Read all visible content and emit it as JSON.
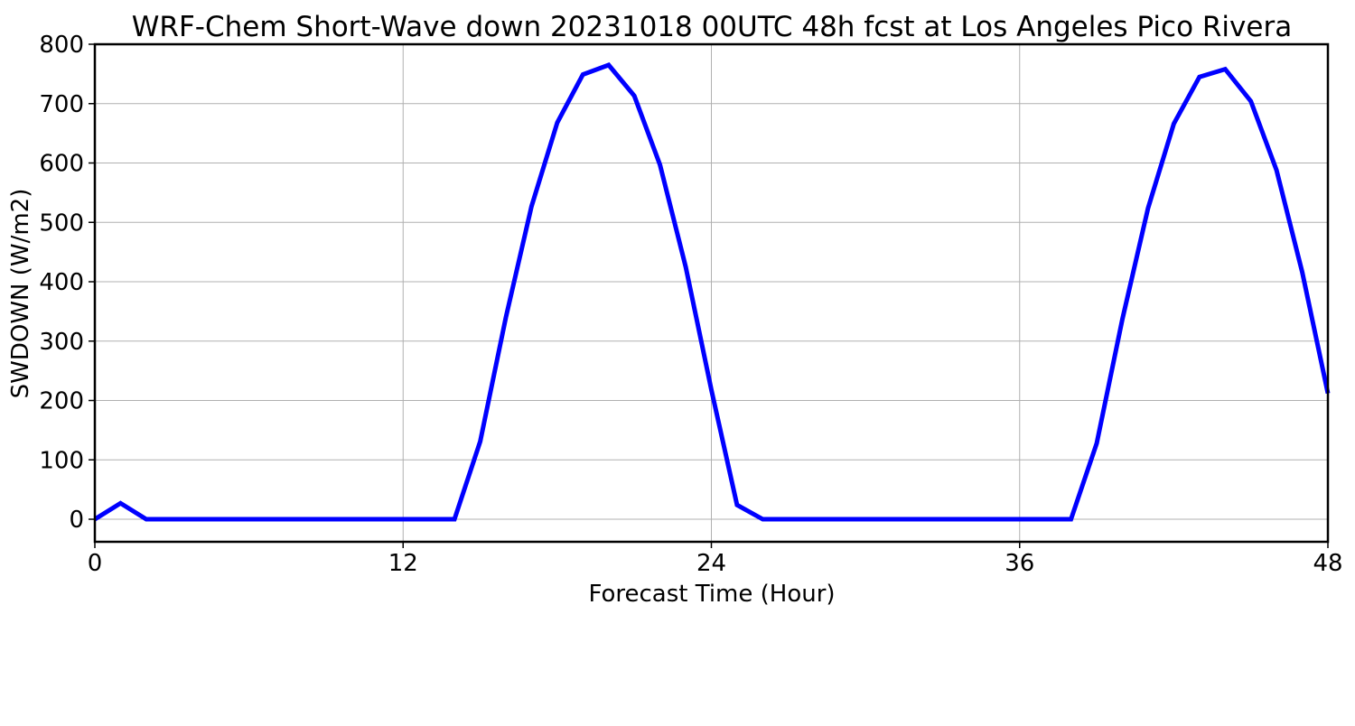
{
  "chart_data": {
    "type": "line",
    "title": "WRF-Chem Short-Wave down  20231018 00UTC 48h fcst at Los Angeles Pico Rivera",
    "xlabel": "Forecast Time (Hour)",
    "ylabel": "SWDOWN  (W/m2)",
    "xlim": [
      0,
      48
    ],
    "ylim": [
      -38,
      800
    ],
    "xticks": [
      0,
      12,
      24,
      36,
      48
    ],
    "yticks": [
      0,
      100,
      200,
      300,
      400,
      500,
      600,
      700,
      800
    ],
    "grid": true,
    "series": [
      {
        "color": "#0000ff",
        "x": [
          0,
          1,
          2,
          3,
          4,
          5,
          6,
          7,
          8,
          9,
          10,
          11,
          12,
          13,
          14,
          15,
          16,
          17,
          18,
          19,
          20,
          21,
          22,
          23,
          24,
          25,
          26,
          27,
          28,
          29,
          30,
          31,
          32,
          33,
          34,
          35,
          36,
          37,
          38,
          39,
          40,
          41,
          42,
          43,
          44,
          45,
          46,
          47,
          48
        ],
        "y": [
          0,
          27,
          0,
          0,
          0,
          0,
          0,
          0,
          0,
          0,
          0,
          0,
          0,
          0,
          0,
          131,
          340,
          527,
          668,
          749,
          765,
          713,
          597,
          425,
          218,
          24,
          0,
          0,
          0,
          0,
          0,
          0,
          0,
          0,
          0,
          0,
          0,
          0,
          0,
          128,
          337,
          524,
          666,
          745,
          758,
          704,
          588,
          416,
          212
        ]
      }
    ]
  }
}
